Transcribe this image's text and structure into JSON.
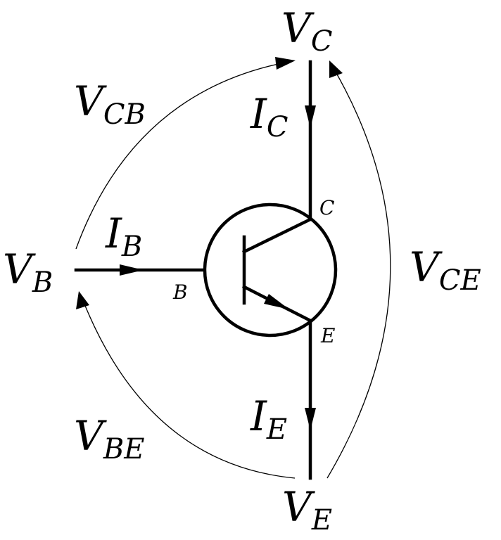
{
  "nodes": {
    "vc": {
      "main": "V",
      "sub": "C"
    },
    "vb": {
      "main": "V",
      "sub": "B"
    },
    "ve": {
      "main": "V",
      "sub": "E"
    }
  },
  "currents": {
    "ic": {
      "main": "I",
      "sub": "C"
    },
    "ib": {
      "main": "I",
      "sub": "B"
    },
    "ie": {
      "main": "I",
      "sub": "E"
    }
  },
  "voltages": {
    "vcb": {
      "main": "V",
      "sub": "CB"
    },
    "vce": {
      "main": "V",
      "sub": "CE"
    },
    "vbe": {
      "main": "V",
      "sub": "BE"
    }
  },
  "pins": {
    "collector": "C",
    "base": "B",
    "emitter": "E"
  },
  "colors": {
    "ink": "#000000",
    "background": "#ffffff"
  }
}
